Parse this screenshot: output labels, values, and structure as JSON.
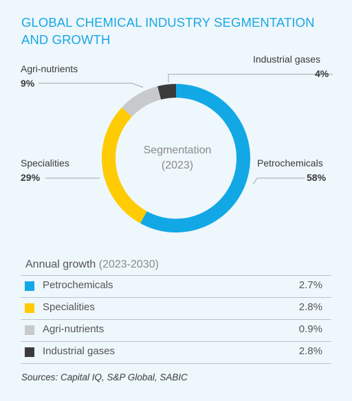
{
  "title": "GLOBAL CHEMICAL INDUSTRY SEGMENTATION AND GROWTH",
  "chart_data": [
    {
      "type": "pie",
      "center_title": "Segmentation",
      "center_subtitle": "(2023)",
      "categories": [
        "Petrochemicals",
        "Specialities",
        "Agri-nutrients",
        "Industrial gases"
      ],
      "values": [
        58,
        29,
        9,
        4
      ],
      "labels": [
        "58%",
        "29%",
        "9%",
        "4%"
      ],
      "colors": [
        "#12a8e6",
        "#ffcb05",
        "#c7c9cb",
        "#3b3b3b"
      ]
    },
    {
      "type": "table",
      "title": "Annual growth",
      "subtitle": "(2023-2030)",
      "rows": [
        {
          "name": "Petrochemicals",
          "value": "2.7%",
          "color": "#12a8e6"
        },
        {
          "name": "Specialities",
          "value": "2.8%",
          "color": "#ffcb05"
        },
        {
          "name": "Agri-nutrients",
          "value": "0.9%",
          "color": "#c7c9cb"
        },
        {
          "name": "Industrial gases",
          "value": "2.8%",
          "color": "#3b3b3b"
        }
      ]
    }
  ],
  "source": "Sources: Capital IQ, S&P Global, SABIC"
}
